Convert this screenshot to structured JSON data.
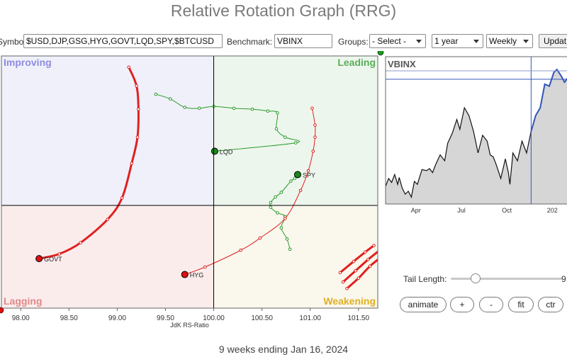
{
  "page": {
    "title": "Relative Rotation Graph (RRG)",
    "footer": "9 weeks ending Jan 16, 2024"
  },
  "toolbar": {
    "symbols_label": "Symbols:",
    "symbols_value": "$USD,DJP,GSG,HYG,GOVT,LQD,SPY,$BTCUSD",
    "benchmark_label": "Benchmark:",
    "benchmark_value": "VBINX",
    "groups_label": "Groups:",
    "groups_value": "- Select -",
    "period_value": "1 year",
    "frequency_value": "Weekly",
    "update_label": "Updat"
  },
  "controls": {
    "tail_length_label": "Tail Length:",
    "tail_length_value": "9",
    "tail_length_fraction": 0.22,
    "animate_label": "animate",
    "plus_label": "+",
    "minus_label": "-",
    "fit_label": "fit",
    "center_label": "ctr"
  },
  "chart_data": [
    {
      "type": "scatter",
      "subtype": "relative-rotation-graph",
      "xlabel": "JdK RS-Ratio",
      "ylabel": "",
      "xlim": [
        97.8,
        101.7
      ],
      "ylim": [
        98.9,
        101.6
      ],
      "x_ticks": [
        "98.00",
        "98.50",
        "99.00",
        "99.50",
        "100.00",
        "100.50",
        "101.00",
        "101.50"
      ],
      "x_tick_values": [
        98.0,
        98.5,
        99.0,
        99.5,
        100.0,
        100.5,
        101.0,
        101.5
      ],
      "center": [
        100,
        100
      ],
      "quadrants": {
        "improving": "Improving",
        "leading": "Leading",
        "lagging": "Lagging",
        "weakening": "Weakening"
      },
      "quadrant_colors": {
        "improving": "#f0f0fa",
        "leading": "#edf6ed",
        "lagging": "#fbecec",
        "weakening": "#faf7ed",
        "improving_text": "#8c8ce0",
        "leading_text": "#5aad5a",
        "lagging_text": "#e08888",
        "weakening_text": "#e0b020"
      },
      "series": [
        {
          "name": "LQD",
          "color": "#2a9a2a",
          "head_color": "#1a8a1a",
          "line_width": 1,
          "points": [
            [
              99.4,
              101.19
            ],
            [
              99.55,
              101.14
            ],
            [
              99.7,
              101.05
            ],
            [
              99.85,
              101.04
            ],
            [
              100.0,
              101.06
            ],
            [
              100.21,
              101.04
            ],
            [
              100.4,
              101.03
            ],
            [
              100.56,
              101.01
            ],
            [
              100.66,
              100.99
            ],
            [
              100.65,
              100.82
            ],
            [
              100.74,
              100.73
            ],
            [
              100.85,
              100.67
            ],
            [
              100.01,
              100.58
            ]
          ]
        },
        {
          "name": "SPY",
          "color": "#2a9a2a",
          "head_color": "#1a8a1a",
          "line_width": 1,
          "points": [
            [
              100.79,
              99.53
            ],
            [
              100.76,
              99.64
            ],
            [
              100.7,
              99.76
            ],
            [
              100.74,
              99.88
            ],
            [
              100.66,
              99.92
            ],
            [
              100.59,
              99.98
            ],
            [
              100.59,
              100.03
            ],
            [
              100.64,
              100.09
            ],
            [
              100.7,
              100.14
            ],
            [
              100.8,
              100.26
            ],
            [
              100.84,
              100.29
            ],
            [
              100.87,
              100.33
            ]
          ]
        },
        {
          "name": "GOVT",
          "color": "#e02020",
          "head_color": "#dd1111",
          "line_width": 3,
          "points": [
            [
              99.12,
              101.48
            ],
            [
              99.2,
              101.28
            ],
            [
              99.22,
              101.03
            ],
            [
              99.21,
              100.73
            ],
            [
              99.15,
              100.45
            ],
            [
              99.05,
              100.08
            ],
            [
              98.9,
              99.85
            ],
            [
              98.62,
              99.6
            ],
            [
              98.4,
              99.48
            ],
            [
              98.19,
              99.43
            ]
          ]
        },
        {
          "name": "HYG",
          "color": "#e02020",
          "head_color": "#dd1111",
          "line_width": 1,
          "points": [
            [
              101.02,
              101.04
            ],
            [
              101.05,
              100.86
            ],
            [
              101.05,
              100.73
            ],
            [
              101.03,
              100.58
            ],
            [
              100.98,
              100.37
            ],
            [
              100.9,
              100.16
            ],
            [
              100.74,
              99.86
            ],
            [
              100.48,
              99.65
            ],
            [
              100.28,
              99.52
            ],
            [
              99.91,
              99.34
            ],
            [
              99.7,
              99.26
            ]
          ]
        },
        {
          "name": "",
          "color": "#e02020",
          "head_color": "#dd1111",
          "line_width": 3,
          "points": [
            [
              101.66,
              99.57
            ],
            [
              101.57,
              99.5
            ],
            [
              101.45,
              99.4
            ],
            [
              101.31,
              99.28
            ]
          ]
        },
        {
          "name": "",
          "color": "#e02020",
          "head_color": "#dd1111",
          "line_width": 3,
          "points": [
            [
              101.72,
              99.52
            ],
            [
              101.6,
              99.42
            ],
            [
              101.47,
              99.3
            ],
            [
              101.34,
              99.18
            ]
          ]
        },
        {
          "name": "",
          "color": "#e02020",
          "head_color": "#dd1111",
          "line_width": 3,
          "points": [
            [
              101.74,
              99.45
            ],
            [
              101.62,
              99.35
            ],
            [
              101.5,
              99.22
            ],
            [
              101.38,
              99.11
            ]
          ]
        }
      ]
    },
    {
      "type": "area",
      "title": "VBINX",
      "x_ticks": [
        "Apr",
        "Jul",
        "Oct",
        "202"
      ],
      "x_tick_values": [
        3.9,
        6.9,
        9.9,
        12.9
      ],
      "xlim": [
        1.9,
        14.1
      ],
      "ylim": [
        77,
        92
      ],
      "fill_color": "#d6d6d6",
      "line_color": "#111111",
      "highlight_color": "#3355bb",
      "highlight_start": 11.5,
      "x": [
        1.9,
        2.1,
        2.3,
        2.5,
        2.7,
        2.8,
        3.0,
        3.2,
        3.4,
        3.6,
        3.8,
        4.0,
        4.3,
        4.6,
        4.8,
        5.0,
        5.2,
        5.5,
        5.8,
        6.0,
        6.3,
        6.6,
        6.8,
        7.1,
        7.4,
        7.7,
        8.0,
        8.3,
        8.6,
        8.8,
        9.0,
        9.2,
        9.5,
        9.8,
        10.0,
        10.1,
        10.3,
        10.6,
        10.9,
        11.2,
        11.5,
        11.8,
        12.1,
        12.4,
        12.7,
        13.0,
        13.2,
        13.5,
        13.7,
        14.1
      ],
      "y": [
        78.8,
        79.6,
        79.2,
        80.0,
        79.0,
        79.7,
        78.6,
        78.0,
        78.3,
        77.7,
        79.3,
        79.0,
        80.5,
        80.4,
        80.6,
        80.2,
        81.0,
        82.0,
        81.4,
        83.2,
        84.2,
        85.6,
        84.6,
        86.8,
        86.0,
        84.4,
        82.2,
        84.0,
        83.4,
        82.0,
        81.8,
        81.0,
        79.6,
        81.6,
        80.2,
        79.0,
        82.2,
        81.4,
        83.4,
        82.2,
        84.4,
        86.0,
        86.8,
        89.2,
        89.0,
        90.4,
        90.7,
        90.0,
        89.4,
        90.2
      ],
      "highlight_line_y": 89.7
    }
  ]
}
